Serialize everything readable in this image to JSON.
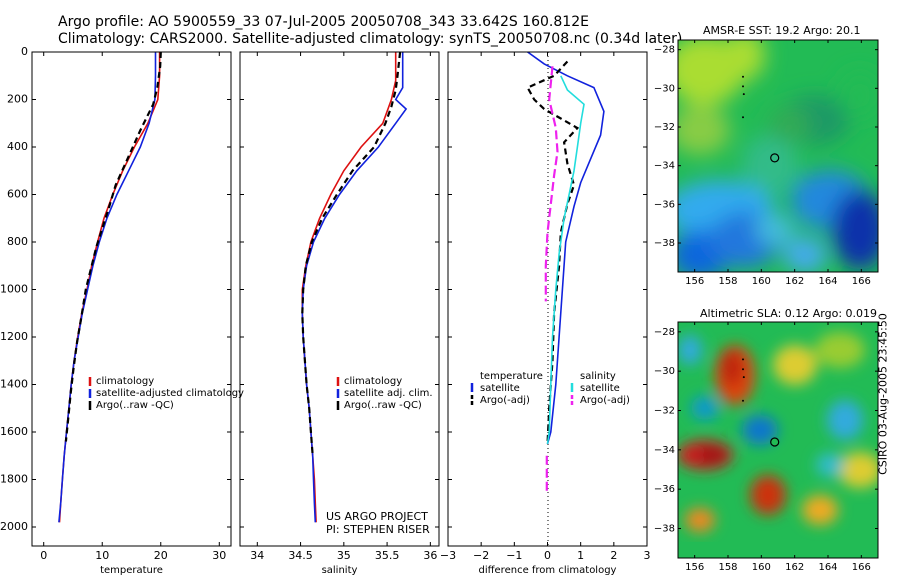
{
  "header": {
    "line1": "Argo profile: AO 5900559_33 07-Jul-2005 20050708_343 33.642S 160.812E",
    "line2": "Climatology: CARS2000. Satellite-adjusted climatology: synTS_20050708.nc (0.34d later)"
  },
  "credits": {
    "line1": "US ARGO PROJECT",
    "line2": "PI: STEPHEN RISER"
  },
  "side_label": "CSIRO 03-Aug-2005 23:45:50",
  "colors": {
    "red": "#dd1111",
    "blue": "#1122dd",
    "black": "#000000",
    "cyan": "#22dddd",
    "magenta": "#ee22ee"
  },
  "chart_data": [
    {
      "type": "line",
      "name": "temperature-profile",
      "xlabel": "temperature",
      "ylabel": "",
      "xlim": [
        -2,
        32
      ],
      "ylim": [
        2080,
        0
      ],
      "xticks": [
        0,
        10,
        20,
        30
      ],
      "yticks": [
        0,
        200,
        400,
        600,
        800,
        1000,
        1200,
        1400,
        1600,
        1800,
        2000
      ],
      "legend": [
        "climatology",
        "satellite-adjusted climatology",
        "Argo(..raw -QC)"
      ],
      "series": [
        {
          "name": "climatology",
          "color": "red",
          "dash": "",
          "points": [
            [
              19.8,
              0
            ],
            [
              19.8,
              100
            ],
            [
              19.5,
              200
            ],
            [
              17.8,
              300
            ],
            [
              15.5,
              400
            ],
            [
              13.5,
              500
            ],
            [
              11.8,
              600
            ],
            [
              10.3,
              700
            ],
            [
              9.2,
              800
            ],
            [
              8.2,
              900
            ],
            [
              7.4,
              1000
            ],
            [
              6.5,
              1100
            ],
            [
              5.8,
              1200
            ],
            [
              5.2,
              1300
            ],
            [
              4.7,
              1400
            ],
            [
              4.3,
              1500
            ],
            [
              3.9,
              1600
            ],
            [
              3.5,
              1700
            ],
            [
              3.2,
              1800
            ],
            [
              2.9,
              1900
            ],
            [
              2.7,
              1980
            ]
          ]
        },
        {
          "name": "satellite-adjusted climatology",
          "color": "blue",
          "dash": "",
          "points": [
            [
              19.1,
              0
            ],
            [
              19.1,
              100
            ],
            [
              19.0,
              200
            ],
            [
              18.0,
              300
            ],
            [
              16.5,
              400
            ],
            [
              14.5,
              500
            ],
            [
              12.5,
              600
            ],
            [
              10.8,
              700
            ],
            [
              9.5,
              800
            ],
            [
              8.4,
              900
            ],
            [
              7.5,
              1000
            ],
            [
              6.6,
              1100
            ],
            [
              5.9,
              1200
            ],
            [
              5.2,
              1300
            ],
            [
              4.7,
              1400
            ],
            [
              4.3,
              1500
            ],
            [
              3.9,
              1600
            ],
            [
              3.5,
              1700
            ],
            [
              3.2,
              1800
            ],
            [
              2.9,
              1900
            ],
            [
              2.6,
              1980
            ]
          ]
        },
        {
          "name": "Argo(..raw -QC)",
          "color": "black",
          "dash": "6,4",
          "points": [
            [
              20.0,
              0
            ],
            [
              19.9,
              60
            ],
            [
              19.4,
              150
            ],
            [
              18.7,
              220
            ],
            [
              16.5,
              330
            ],
            [
              14.5,
              440
            ],
            [
              12.3,
              560
            ],
            [
              11.2,
              650
            ],
            [
              10.3,
              720
            ],
            [
              9.0,
              820
            ],
            [
              8.0,
              920
            ],
            [
              7.2,
              1000
            ],
            [
              6.4,
              1120
            ],
            [
              5.7,
              1220
            ],
            [
              5.1,
              1330
            ],
            [
              4.6,
              1440
            ],
            [
              4.2,
              1540
            ],
            [
              3.8,
              1640
            ]
          ]
        }
      ]
    },
    {
      "type": "line",
      "name": "salinity-profile",
      "xlabel": "salinity",
      "ylabel": "",
      "xlim": [
        33.8,
        36.1
      ],
      "ylim": [
        2080,
        0
      ],
      "xticks": [
        34,
        34.5,
        35,
        35.5,
        36
      ],
      "yticks": [],
      "legend": [
        "climatology",
        "satellite adj. clim.",
        "Argo(..raw -QC)"
      ],
      "series": [
        {
          "name": "climatology",
          "color": "red",
          "dash": "",
          "points": [
            [
              35.6,
              0
            ],
            [
              35.6,
              120
            ],
            [
              35.55,
              200
            ],
            [
              35.45,
              300
            ],
            [
              35.2,
              400
            ],
            [
              35.0,
              500
            ],
            [
              34.85,
              600
            ],
            [
              34.72,
              700
            ],
            [
              34.62,
              800
            ],
            [
              34.56,
              900
            ],
            [
              34.52,
              1000
            ],
            [
              34.52,
              1100
            ],
            [
              34.53,
              1200
            ],
            [
              34.55,
              1300
            ],
            [
              34.57,
              1400
            ],
            [
              34.6,
              1500
            ],
            [
              34.62,
              1600
            ],
            [
              34.64,
              1700
            ],
            [
              34.66,
              1800
            ],
            [
              34.67,
              1900
            ],
            [
              34.68,
              1980
            ]
          ]
        },
        {
          "name": "satellite adj. clim.",
          "color": "blue",
          "dash": "",
          "points": [
            [
              35.68,
              0
            ],
            [
              35.68,
              150
            ],
            [
              35.6,
              200
            ],
            [
              35.72,
              240
            ],
            [
              35.6,
              300
            ],
            [
              35.4,
              400
            ],
            [
              35.15,
              500
            ],
            [
              34.95,
              600
            ],
            [
              34.78,
              700
            ],
            [
              34.65,
              800
            ],
            [
              34.57,
              900
            ],
            [
              34.53,
              1000
            ],
            [
              34.52,
              1100
            ],
            [
              34.53,
              1200
            ],
            [
              34.55,
              1300
            ],
            [
              34.57,
              1400
            ],
            [
              34.6,
              1500
            ],
            [
              34.62,
              1600
            ],
            [
              34.64,
              1700
            ],
            [
              34.65,
              1800
            ],
            [
              34.66,
              1900
            ],
            [
              34.67,
              1980
            ]
          ]
        },
        {
          "name": "Argo(..raw -QC)",
          "color": "black",
          "dash": "6,4",
          "points": [
            [
              35.65,
              0
            ],
            [
              35.62,
              100
            ],
            [
              35.6,
              160
            ],
            [
              35.55,
              230
            ],
            [
              35.48,
              300
            ],
            [
              35.35,
              400
            ],
            [
              35.1,
              500
            ],
            [
              34.92,
              600
            ],
            [
              34.75,
              700
            ],
            [
              34.63,
              800
            ],
            [
              34.56,
              900
            ],
            [
              34.53,
              1000
            ],
            [
              34.52,
              1100
            ],
            [
              34.53,
              1200
            ],
            [
              34.55,
              1300
            ],
            [
              34.57,
              1400
            ],
            [
              34.6,
              1500
            ],
            [
              34.62,
              1600
            ],
            [
              34.64,
              1700
            ]
          ]
        }
      ]
    },
    {
      "type": "line",
      "name": "difference-profile",
      "xlabel": "difference from climatology",
      "ylabel": "",
      "xlim": [
        -3,
        3
      ],
      "ylim": [
        2080,
        0
      ],
      "xticks": [
        -3,
        -2,
        -1,
        0,
        1,
        2,
        3
      ],
      "yticks": [],
      "legend_temperature": {
        "title": "temperature",
        "items": [
          "satellite",
          "Argo(-adj)"
        ]
      },
      "legend_salinity": {
        "title": "salinity",
        "items": [
          "satellite",
          "Argo(-adj)"
        ]
      },
      "series": [
        {
          "name": "temperature satellite",
          "color": "blue",
          "dash": "",
          "points": [
            [
              -0.6,
              0
            ],
            [
              -0.1,
              50
            ],
            [
              0.6,
              100
            ],
            [
              1.4,
              150
            ],
            [
              1.7,
              250
            ],
            [
              1.6,
              350
            ],
            [
              1.3,
              450
            ],
            [
              1.0,
              550
            ],
            [
              0.8,
              650
            ],
            [
              0.55,
              800
            ],
            [
              0.45,
              1000
            ],
            [
              0.35,
              1200
            ],
            [
              0.25,
              1400
            ],
            [
              0.1,
              1600
            ],
            [
              0.0,
              1650
            ]
          ]
        },
        {
          "name": "temperature Argo(-adj)",
          "color": "black",
          "dash": "6,4",
          "points": [
            [
              0.6,
              40
            ],
            [
              0.2,
              100
            ],
            [
              -0.6,
              150
            ],
            [
              -0.4,
              200
            ],
            [
              -0.1,
              240
            ],
            [
              0.4,
              280
            ],
            [
              0.9,
              320
            ],
            [
              0.5,
              380
            ],
            [
              0.6,
              470
            ],
            [
              0.8,
              560
            ],
            [
              0.6,
              640
            ],
            [
              0.4,
              760
            ],
            [
              0.35,
              900
            ],
            [
              0.2,
              1100
            ],
            [
              0.15,
              1300
            ],
            [
              0.05,
              1500
            ],
            [
              0.0,
              1650
            ]
          ]
        },
        {
          "name": "salinity satellite",
          "color": "cyan",
          "dash": "",
          "points": [
            [
              0.4,
              100
            ],
            [
              0.6,
              160
            ],
            [
              1.1,
              220
            ],
            [
              1.0,
              300
            ],
            [
              0.9,
              400
            ],
            [
              0.8,
              500
            ],
            [
              0.65,
              600
            ],
            [
              0.5,
              700
            ],
            [
              0.35,
              850
            ],
            [
              0.25,
              1000
            ],
            [
              0.15,
              1200
            ],
            [
              0.1,
              1400
            ],
            [
              0.05,
              1600
            ],
            [
              0.0,
              1650
            ]
          ]
        },
        {
          "name": "salinity Argo(-adj)",
          "color": "magenta",
          "dash": "9,4",
          "points": [
            [
              0.15,
              60
            ],
            [
              0.05,
              200
            ],
            [
              0.25,
              320
            ],
            [
              0.3,
              420
            ],
            [
              0.2,
              520
            ],
            [
              0.1,
              640
            ],
            [
              0.0,
              760
            ],
            [
              -0.05,
              900
            ],
            [
              -0.05,
              1050
            ]
          ]
        },
        {
          "name": "salinity Argo(-adj) deep",
          "color": "magenta",
          "dash": "9,4",
          "points": [
            [
              -0.02,
              1700
            ],
            [
              -0.02,
              1850
            ]
          ]
        }
      ]
    },
    {
      "type": "heatmap",
      "name": "sst-map",
      "title": "AMSR-E SST: 19.2 Argo: 20.1",
      "xlim": [
        155,
        167
      ],
      "ylim": [
        -39.5,
        -27.5
      ],
      "xticks": [
        156,
        158,
        160,
        162,
        164,
        166
      ],
      "yticks": [
        -28,
        -30,
        -32,
        -34,
        -36,
        -38
      ],
      "marker": {
        "lon": 160.8,
        "lat": -33.6
      }
    },
    {
      "type": "heatmap",
      "name": "sla-map",
      "title": "Altimetric SLA: 0.12 Argo: 0.019",
      "xlim": [
        155,
        167
      ],
      "ylim": [
        -39.5,
        -27.5
      ],
      "xticks": [
        156,
        158,
        160,
        162,
        164,
        166
      ],
      "yticks": [
        -28,
        -30,
        -32,
        -34,
        -36,
        -38
      ],
      "marker": {
        "lon": 160.8,
        "lat": -33.6
      }
    }
  ]
}
